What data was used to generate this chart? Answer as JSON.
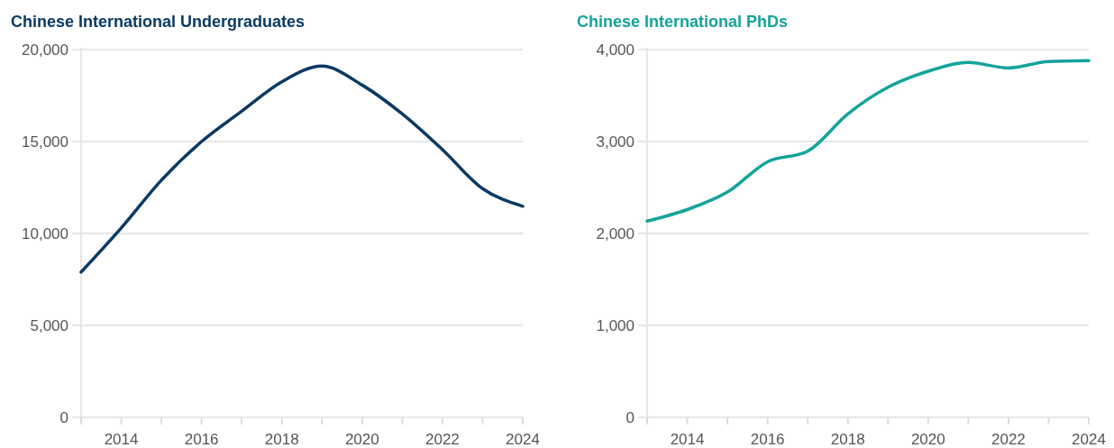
{
  "chart_data": [
    {
      "type": "line",
      "title": "Chinese International Undergraduates",
      "x": [
        2013,
        2014,
        2015,
        2016,
        2017,
        2018,
        2019,
        2020,
        2021,
        2022,
        2023,
        2024
      ],
      "series": [
        {
          "color": "#0b3a63",
          "values": [
            7900,
            10300,
            12900,
            15000,
            16650,
            18250,
            19100,
            18070,
            16500,
            14560,
            12440,
            11480
          ]
        }
      ],
      "xlim": [
        2013,
        2024
      ],
      "xticks": [
        {
          "value": 2013,
          "label": null
        },
        2014,
        {
          "value": 2015,
          "label": null
        },
        2016,
        {
          "value": 2017,
          "label": null
        },
        2018,
        {
          "value": 2019,
          "label": null
        },
        2020,
        {
          "value": 2021,
          "label": null
        },
        2022,
        {
          "value": 2023,
          "label": null
        },
        2024
      ],
      "ylim": [
        0,
        20000
      ],
      "yticks": [
        {
          "value": 0,
          "label": "0"
        },
        {
          "value": 5000,
          "label": "5,000"
        },
        {
          "value": 10000,
          "label": "10,000"
        },
        {
          "value": 15000,
          "label": "15,000"
        },
        {
          "value": 20000,
          "label": "20,000"
        }
      ],
      "grid": "y"
    },
    {
      "type": "line",
      "title": "Chinese International PhDs",
      "x": [
        2013,
        2014,
        2015,
        2016,
        2017,
        2018,
        2019,
        2020,
        2021,
        2022,
        2023,
        2024
      ],
      "series": [
        {
          "color": "#14a39a",
          "values": [
            2135,
            2260,
            2450,
            2780,
            2895,
            3300,
            3590,
            3765,
            3860,
            3800,
            3870,
            3880
          ]
        }
      ],
      "xlim": [
        2013,
        2024
      ],
      "xticks": [
        {
          "value": 2013,
          "label": null
        },
        2014,
        {
          "value": 2015,
          "label": null
        },
        2016,
        {
          "value": 2017,
          "label": null
        },
        2018,
        {
          "value": 2019,
          "label": null
        },
        2020,
        {
          "value": 2021,
          "label": null
        },
        2022,
        {
          "value": 2023,
          "label": null
        },
        2024
      ],
      "ylim": [
        0,
        4000
      ],
      "yticks": [
        {
          "value": 0,
          "label": "0"
        },
        {
          "value": 1000,
          "label": "1,000"
        },
        {
          "value": 2000,
          "label": "2,000"
        },
        {
          "value": 3000,
          "label": "3,000"
        },
        {
          "value": 4000,
          "label": "4,000"
        }
      ],
      "grid": "y"
    }
  ]
}
